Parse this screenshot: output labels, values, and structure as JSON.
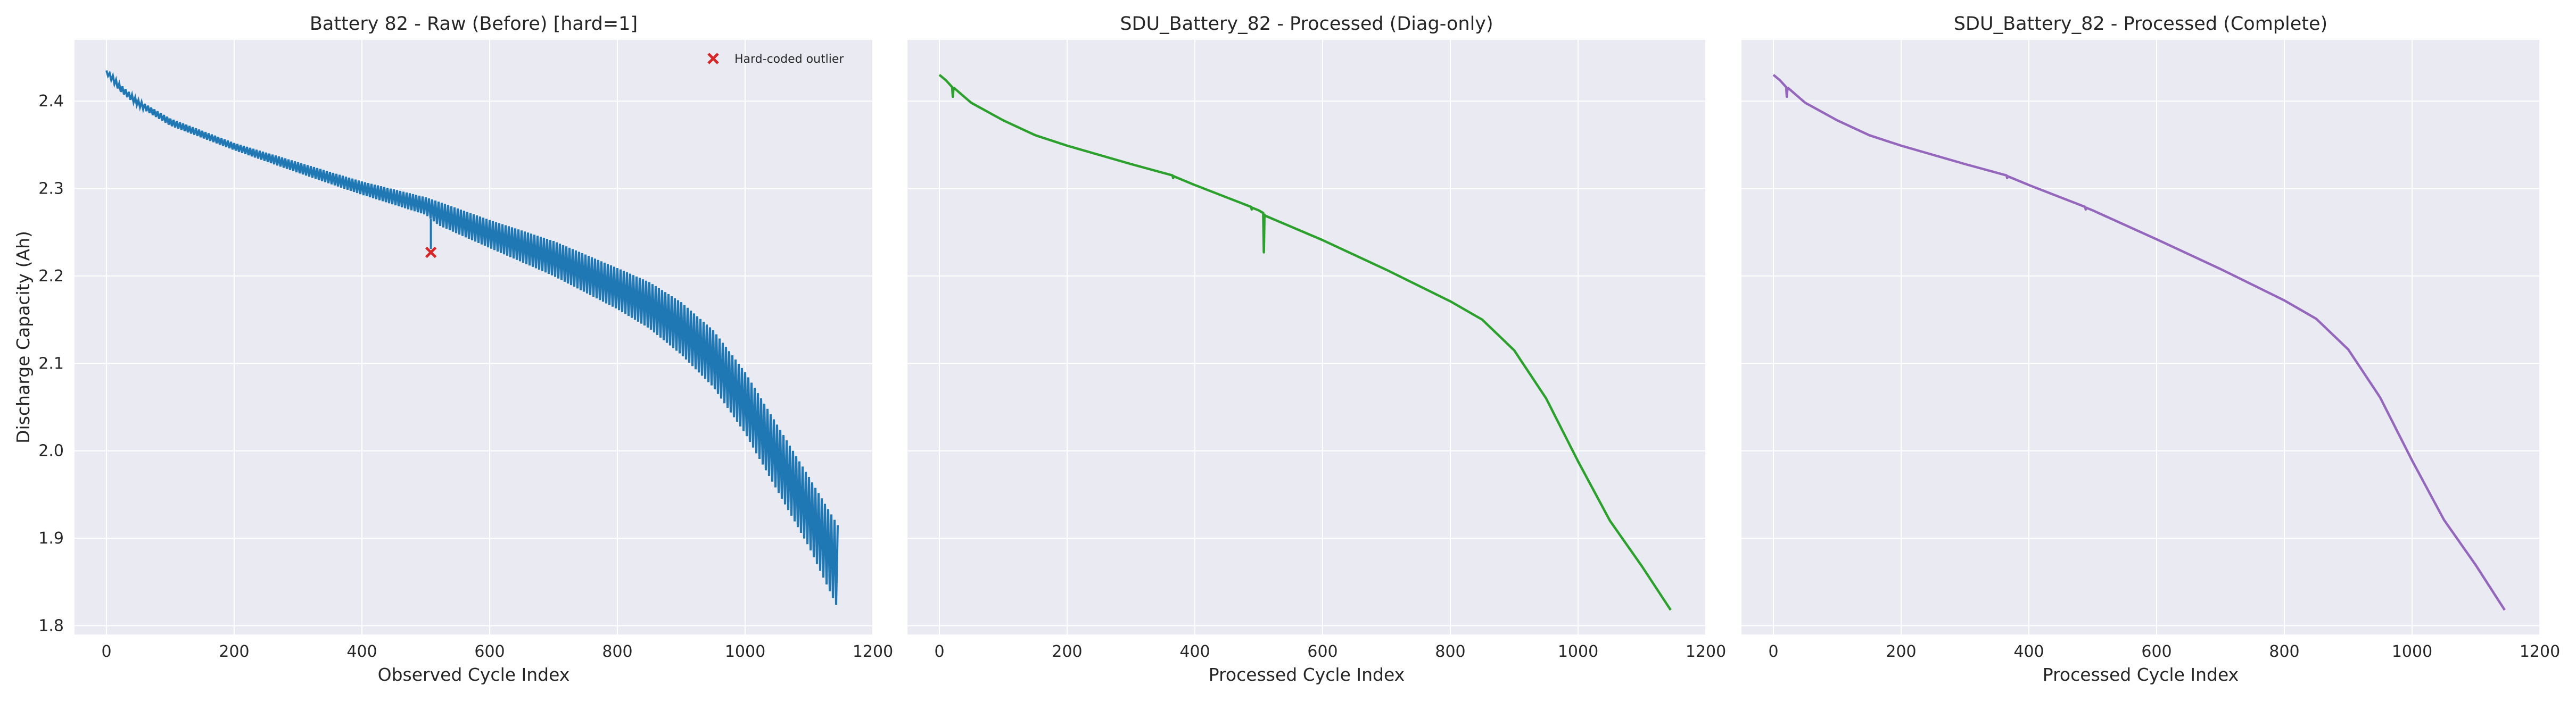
{
  "figure": {
    "ylabel": "Discharge Capacity (Ah)",
    "colors": {
      "background": "#eaeaf2",
      "grid": "#ffffff",
      "raw": "#1f77b4",
      "diag": "#2ca02c",
      "complete": "#9467bd",
      "outlier": "#d62728"
    }
  },
  "chart_data": [
    {
      "type": "line",
      "title": "Battery 82 - Raw (Before)  [hard=1]",
      "xlabel": "Observed Cycle Index",
      "ylabel": "Discharge Capacity (Ah)",
      "xlim": [
        -50,
        1200
      ],
      "ylim": [
        1.79,
        2.47
      ],
      "xticks": [
        0,
        200,
        400,
        600,
        800,
        1000,
        1200
      ],
      "yticks": [
        1.8,
        1.9,
        2.0,
        2.1,
        2.2,
        2.3,
        2.4
      ],
      "grid": true,
      "legend": {
        "position": "top-right",
        "entries": [
          "Hard-coded outlier"
        ]
      },
      "series": [
        {
          "style": "band",
          "x": [
            0,
            10,
            20,
            50,
            100,
            200,
            300,
            400,
            500,
            520,
            600,
            700,
            800,
            850,
            900,
            950,
            1000,
            1050,
            1100,
            1145
          ],
          "upper": [
            2.435,
            2.429,
            2.42,
            2.401,
            2.38,
            2.352,
            2.33,
            2.308,
            2.29,
            2.285,
            2.264,
            2.24,
            2.209,
            2.193,
            2.17,
            2.138,
            2.09,
            2.03,
            1.97,
            1.915
          ],
          "lower": [
            2.431,
            2.422,
            2.412,
            2.394,
            2.372,
            2.344,
            2.318,
            2.293,
            2.27,
            2.258,
            2.232,
            2.2,
            2.162,
            2.14,
            2.11,
            2.073,
            2.02,
            1.955,
            1.89,
            1.82
          ]
        },
        {
          "name": "Hard-coded outlier",
          "style": "marker",
          "x": [
            508
          ],
          "y": [
            2.227
          ]
        }
      ]
    },
    {
      "type": "line",
      "title": "SDU_Battery_82 - Processed (Diag-only)",
      "xlabel": "Processed Cycle Index",
      "xlim": [
        -50,
        1200
      ],
      "ylim": [
        1.79,
        2.47
      ],
      "xticks": [
        0,
        200,
        400,
        600,
        800,
        1000,
        1200
      ],
      "grid": true,
      "series": [
        {
          "style": "line",
          "x": [
            0,
            10,
            20,
            21,
            22,
            23,
            50,
            100,
            150,
            200,
            300,
            365,
            366,
            367,
            400,
            488,
            489,
            490,
            500,
            507,
            508,
            509,
            510,
            600,
            700,
            800,
            850,
            900,
            950,
            1000,
            1050,
            1100,
            1145
          ],
          "y": [
            2.43,
            2.424,
            2.416,
            2.405,
            2.414,
            2.415,
            2.398,
            2.378,
            2.361,
            2.349,
            2.328,
            2.315,
            2.312,
            2.314,
            2.304,
            2.279,
            2.276,
            2.278,
            2.275,
            2.272,
            2.227,
            2.27,
            2.269,
            2.241,
            2.207,
            2.171,
            2.15,
            2.115,
            2.06,
            1.988,
            1.92,
            1.868,
            1.818
          ]
        }
      ]
    },
    {
      "type": "line",
      "title": "SDU_Battery_82 - Processed (Complete)",
      "xlabel": "Processed Cycle Index",
      "xlim": [
        -50,
        1200
      ],
      "ylim": [
        1.79,
        2.47
      ],
      "xticks": [
        0,
        200,
        400,
        600,
        800,
        1000,
        1200
      ],
      "grid": true,
      "series": [
        {
          "style": "line",
          "x": [
            0,
            10,
            20,
            21,
            22,
            23,
            50,
            100,
            150,
            200,
            300,
            365,
            366,
            367,
            400,
            488,
            489,
            490,
            500,
            600,
            700,
            800,
            850,
            900,
            950,
            1000,
            1050,
            1100,
            1145
          ],
          "y": [
            2.43,
            2.424,
            2.416,
            2.405,
            2.414,
            2.415,
            2.398,
            2.378,
            2.361,
            2.349,
            2.328,
            2.315,
            2.312,
            2.314,
            2.304,
            2.279,
            2.276,
            2.278,
            2.275,
            2.242,
            2.208,
            2.172,
            2.151,
            2.116,
            2.061,
            1.989,
            1.921,
            1.869,
            1.818
          ]
        }
      ]
    }
  ]
}
